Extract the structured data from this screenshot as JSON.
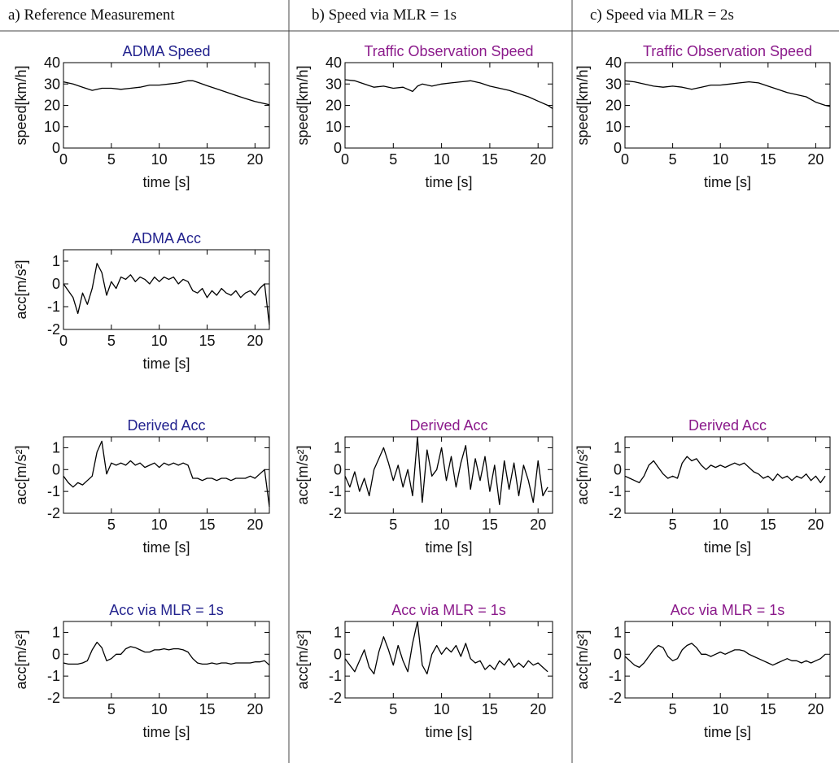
{
  "headers": [
    "a) Reference Measurement",
    "b) Speed via MLR = 1s",
    "c) Speed via MLR = 2s"
  ],
  "chart_data": [
    {
      "type": "line",
      "title": "ADMA  Speed",
      "title_color": "#23238e",
      "xlabel": "time [s]",
      "ylabel": "speed[km/h]",
      "color": "#000000",
      "xlim": [
        0,
        21.5
      ],
      "ylim": [
        0,
        40
      ],
      "xticks": [
        0,
        5,
        10,
        15,
        20
      ],
      "yticks": [
        0,
        10,
        20,
        30,
        40
      ],
      "x": [
        0,
        1,
        2,
        3,
        4,
        5,
        6,
        7,
        8,
        9,
        10,
        11,
        12,
        13,
        13.5,
        14,
        15,
        16,
        17,
        18,
        19,
        20,
        21,
        21.5
      ],
      "values": [
        31,
        30,
        28.5,
        27,
        28,
        28,
        27.5,
        28,
        28.5,
        29.5,
        29.5,
        30,
        30.5,
        31.5,
        31.5,
        30.8,
        29.2,
        27.7,
        26.2,
        24.7,
        23.2,
        21.8,
        20.8,
        20.3
      ]
    },
    {
      "type": "line",
      "title": "ADMA Acc",
      "title_color": "#23238e",
      "xlabel": "time [s]",
      "ylabel": "acc[m/s²]",
      "color": "#000000",
      "xlim": [
        0,
        21.5
      ],
      "ylim": [
        -2,
        1.5
      ],
      "xticks": [
        0,
        5,
        10,
        15,
        20
      ],
      "yticks": [
        -2,
        -1,
        0,
        1
      ],
      "x": [
        0,
        0.5,
        1,
        1.5,
        2,
        2.5,
        3,
        3.5,
        4,
        4.5,
        5,
        5.5,
        6,
        6.5,
        7,
        7.5,
        8,
        8.5,
        9,
        9.5,
        10,
        10.5,
        11,
        11.5,
        12,
        12.5,
        13,
        13.5,
        14,
        14.5,
        15,
        15.5,
        16,
        16.5,
        17,
        17.5,
        18,
        18.5,
        19,
        19.5,
        20,
        20.5,
        21,
        21.5
      ],
      "values": [
        0,
        -0.3,
        -0.6,
        -1.3,
        -0.4,
        -0.9,
        -0.2,
        0.9,
        0.5,
        -0.5,
        0.1,
        -0.2,
        0.3,
        0.2,
        0.4,
        0.1,
        0.3,
        0.2,
        0,
        0.3,
        0.1,
        0.3,
        0.2,
        0.3,
        0,
        0.2,
        0.1,
        -0.3,
        -0.4,
        -0.2,
        -0.6,
        -0.3,
        -0.5,
        -0.2,
        -0.4,
        -0.5,
        -0.3,
        -0.6,
        -0.4,
        -0.3,
        -0.5,
        -0.2,
        0,
        -1.8
      ]
    },
    {
      "type": "line",
      "title": "Derived Acc",
      "title_color": "#23238e",
      "xlabel": "time [s]",
      "ylabel": "acc[m/s²]",
      "color": "#000000",
      "xlim": [
        0,
        21.5
      ],
      "ylim": [
        -2,
        1.5
      ],
      "xticks": [
        5,
        10,
        15,
        20
      ],
      "yticks": [
        -2,
        -1,
        0,
        1
      ],
      "x": [
        0,
        0.5,
        1,
        1.5,
        2,
        2.5,
        3,
        3.5,
        4,
        4.5,
        5,
        5.5,
        6,
        6.5,
        7,
        7.5,
        8,
        8.5,
        9,
        9.5,
        10,
        10.5,
        11,
        11.5,
        12,
        12.5,
        13,
        13.5,
        14,
        14.5,
        15,
        15.5,
        16,
        16.5,
        17,
        17.5,
        18,
        18.5,
        19,
        19.5,
        20,
        20.5,
        21,
        21.5
      ],
      "values": [
        -0.3,
        -0.6,
        -0.8,
        -0.6,
        -0.7,
        -0.5,
        -0.3,
        0.8,
        1.3,
        -0.2,
        0.3,
        0.2,
        0.3,
        0.2,
        0.4,
        0.2,
        0.3,
        0.1,
        0.2,
        0.3,
        0.1,
        0.3,
        0.2,
        0.3,
        0.2,
        0.3,
        0.2,
        -0.4,
        -0.4,
        -0.5,
        -0.4,
        -0.4,
        -0.5,
        -0.4,
        -0.4,
        -0.5,
        -0.4,
        -0.4,
        -0.4,
        -0.3,
        -0.4,
        -0.2,
        0,
        -1.7
      ]
    },
    {
      "type": "line",
      "title": "Acc via MLR = 1s",
      "title_color": "#23238e",
      "xlabel": "time [s]",
      "ylabel": "acc[m/s²]",
      "color": "#000000",
      "xlim": [
        0,
        21.5
      ],
      "ylim": [
        -2,
        1.5
      ],
      "xticks": [
        5,
        10,
        15,
        20
      ],
      "yticks": [
        -2,
        -1,
        0,
        1
      ],
      "x": [
        0,
        0.5,
        1,
        1.5,
        2,
        2.5,
        3,
        3.5,
        4,
        4.5,
        5,
        5.5,
        6,
        6.5,
        7,
        7.5,
        8,
        8.5,
        9,
        9.5,
        10,
        10.5,
        11,
        11.5,
        12,
        12.5,
        13,
        13.5,
        14,
        14.5,
        15,
        15.5,
        16,
        16.5,
        17,
        17.5,
        18,
        18.5,
        19,
        19.5,
        20,
        20.5,
        21,
        21.5
      ],
      "values": [
        -0.4,
        -0.45,
        -0.45,
        -0.45,
        -0.4,
        -0.3,
        0.2,
        0.55,
        0.3,
        -0.3,
        -0.2,
        0,
        0,
        0.25,
        0.35,
        0.3,
        0.2,
        0.1,
        0.1,
        0.2,
        0.2,
        0.25,
        0.2,
        0.25,
        0.25,
        0.2,
        0.1,
        -0.2,
        -0.4,
        -0.45,
        -0.45,
        -0.4,
        -0.45,
        -0.4,
        -0.4,
        -0.45,
        -0.4,
        -0.4,
        -0.4,
        -0.4,
        -0.35,
        -0.35,
        -0.3,
        -0.5
      ]
    },
    {
      "type": "line",
      "title": "Traffic  Observation Speed",
      "title_color": "#8b1a8b",
      "xlabel": "time [s]",
      "ylabel": "speed[km/h]",
      "color": "#000000",
      "xlim": [
        0,
        21.5
      ],
      "ylim": [
        0,
        40
      ],
      "xticks": [
        0,
        5,
        10,
        15,
        20
      ],
      "yticks": [
        0,
        10,
        20,
        30,
        40
      ],
      "x": [
        0,
        1,
        2,
        3,
        4,
        5,
        6,
        7,
        7.5,
        8,
        9,
        10,
        11,
        12,
        13,
        14,
        15,
        16,
        17,
        18,
        19,
        20,
        21,
        21.5
      ],
      "values": [
        32,
        31.5,
        30,
        28.5,
        29,
        28,
        28.5,
        26.5,
        29,
        30,
        29,
        30,
        30.5,
        31,
        31.5,
        30.5,
        29,
        28,
        27,
        25.5,
        24,
        22,
        20,
        18.5
      ]
    },
    {
      "type": "line",
      "title": "Derived Acc",
      "title_color": "#8b1a8b",
      "xlabel": "time [s]",
      "ylabel": "acc[m/s²]",
      "color": "#000000",
      "xlim": [
        0,
        21.5
      ],
      "ylim": [
        -2,
        1.5
      ],
      "xticks": [
        5,
        10,
        15,
        20
      ],
      "yticks": [
        -2,
        -1,
        0,
        1
      ],
      "x": [
        0,
        0.5,
        1,
        1.5,
        2,
        2.5,
        3,
        3.5,
        4,
        4.5,
        5,
        5.5,
        6,
        6.5,
        7,
        7.5,
        8,
        8.5,
        9,
        9.5,
        10,
        10.5,
        11,
        11.5,
        12,
        12.5,
        13,
        13.5,
        14,
        14.5,
        15,
        15.5,
        16,
        16.5,
        17,
        17.5,
        18,
        18.5,
        19,
        19.5,
        20,
        20.5,
        21
      ],
      "values": [
        -0.3,
        -0.8,
        -0.1,
        -1,
        -0.4,
        -1.2,
        0,
        0.5,
        1,
        0.3,
        -0.5,
        0.2,
        -0.8,
        0,
        -1.2,
        1.5,
        -1.5,
        0.9,
        -0.3,
        0,
        1,
        -0.5,
        0.6,
        -0.8,
        0.3,
        1.1,
        -0.9,
        0.5,
        -0.5,
        0.6,
        -1,
        0.2,
        -1.6,
        0.4,
        -0.9,
        0.3,
        -1.2,
        0.2,
        -0.5,
        -1.5,
        0.4,
        -1.2,
        -0.8
      ]
    },
    {
      "type": "line",
      "title": "Acc via MLR = 1s",
      "title_color": "#8b1a8b",
      "xlabel": "time [s]",
      "ylabel": "acc[m/s²]",
      "color": "#000000",
      "xlim": [
        0,
        21.5
      ],
      "ylim": [
        -2,
        1.5
      ],
      "xticks": [
        5,
        10,
        15,
        20
      ],
      "yticks": [
        -2,
        -1,
        0,
        1
      ],
      "x": [
        0,
        0.5,
        1,
        1.5,
        2,
        2.5,
        3,
        3.5,
        4,
        4.5,
        5,
        5.5,
        6,
        6.5,
        7,
        7.5,
        8,
        8.5,
        9,
        9.5,
        10,
        10.5,
        11,
        11.5,
        12,
        12.5,
        13,
        13.5,
        14,
        14.5,
        15,
        15.5,
        16,
        16.5,
        17,
        17.5,
        18,
        18.5,
        19,
        19.5,
        20,
        20.5,
        21
      ],
      "values": [
        -0.2,
        -0.5,
        -0.8,
        -0.3,
        0.2,
        -0.6,
        -0.9,
        0.1,
        0.8,
        0.2,
        -0.5,
        0.4,
        -0.3,
        -0.8,
        0.5,
        1.5,
        -0.5,
        -0.9,
        0,
        0.4,
        0,
        0.3,
        0.1,
        0.4,
        -0.1,
        0.5,
        -0.2,
        -0.4,
        -0.3,
        -0.7,
        -0.5,
        -0.7,
        -0.3,
        -0.5,
        -0.2,
        -0.6,
        -0.4,
        -0.6,
        -0.3,
        -0.5,
        -0.4,
        -0.6,
        -0.8
      ]
    },
    {
      "type": "line",
      "title": "Traffic  Observation Speed",
      "title_color": "#8b1a8b",
      "xlabel": "time [s]",
      "ylabel": "speed[km/h]",
      "color": "#000000",
      "xlim": [
        0,
        21.5
      ],
      "ylim": [
        0,
        40
      ],
      "xticks": [
        0,
        5,
        10,
        15,
        20
      ],
      "yticks": [
        0,
        10,
        20,
        30,
        40
      ],
      "x": [
        0,
        1,
        2,
        3,
        4,
        5,
        6,
        7,
        8,
        9,
        10,
        11,
        12,
        13,
        14,
        15,
        16,
        17,
        18,
        19,
        20,
        21,
        21.5
      ],
      "values": [
        31.5,
        31,
        30,
        29,
        28.5,
        29,
        28.5,
        27.5,
        28.5,
        29.5,
        29.5,
        30,
        30.5,
        31,
        30.5,
        29,
        27.5,
        26,
        25,
        24,
        21.5,
        20,
        19.5
      ]
    },
    {
      "type": "line",
      "title": "Derived Acc",
      "title_color": "#8b1a8b",
      "xlabel": "time [s]",
      "ylabel": "acc[m/s²]",
      "color": "#000000",
      "xlim": [
        0,
        21.5
      ],
      "ylim": [
        -2,
        1.5
      ],
      "xticks": [
        5,
        10,
        15,
        20
      ],
      "yticks": [
        -2,
        -1,
        0,
        1
      ],
      "x": [
        0,
        0.5,
        1,
        1.5,
        2,
        2.5,
        3,
        3.5,
        4,
        4.5,
        5,
        5.5,
        6,
        6.5,
        7,
        7.5,
        8,
        8.5,
        9,
        9.5,
        10,
        10.5,
        11,
        11.5,
        12,
        12.5,
        13,
        13.5,
        14,
        14.5,
        15,
        15.5,
        16,
        16.5,
        17,
        17.5,
        18,
        18.5,
        19,
        19.5,
        20,
        20.5,
        21
      ],
      "values": [
        -0.3,
        -0.4,
        -0.5,
        -0.6,
        -0.3,
        0.2,
        0.4,
        0.1,
        -0.2,
        -0.4,
        -0.3,
        -0.4,
        0.3,
        0.6,
        0.4,
        0.5,
        0.2,
        0,
        0.2,
        0.1,
        0.2,
        0.1,
        0.2,
        0.3,
        0.2,
        0.3,
        0.1,
        -0.1,
        -0.2,
        -0.4,
        -0.3,
        -0.5,
        -0.2,
        -0.4,
        -0.3,
        -0.5,
        -0.3,
        -0.4,
        -0.2,
        -0.5,
        -0.3,
        -0.6,
        -0.3
      ]
    },
    {
      "type": "line",
      "title": "Acc via MLR = 1s",
      "title_color": "#8b1a8b",
      "xlabel": "time [s]",
      "ylabel": "acc[m/s²]",
      "color": "#000000",
      "xlim": [
        0,
        21.5
      ],
      "ylim": [
        -2,
        1.5
      ],
      "xticks": [
        5,
        10,
        15,
        20
      ],
      "yticks": [
        -2,
        -1,
        0,
        1
      ],
      "x": [
        0,
        0.5,
        1,
        1.5,
        2,
        2.5,
        3,
        3.5,
        4,
        4.5,
        5,
        5.5,
        6,
        6.5,
        7,
        7.5,
        8,
        8.5,
        9,
        9.5,
        10,
        10.5,
        11,
        11.5,
        12,
        12.5,
        13,
        13.5,
        14,
        14.5,
        15,
        15.5,
        16,
        16.5,
        17,
        17.5,
        18,
        18.5,
        19,
        19.5,
        20,
        20.5,
        21
      ],
      "values": [
        -0.1,
        -0.3,
        -0.5,
        -0.6,
        -0.4,
        -0.1,
        0.2,
        0.4,
        0.3,
        -0.1,
        -0.3,
        -0.2,
        0.2,
        0.4,
        0.5,
        0.3,
        0,
        0,
        -0.1,
        0,
        0.1,
        0,
        0.1,
        0.2,
        0.2,
        0.15,
        0,
        -0.1,
        -0.2,
        -0.3,
        -0.4,
        -0.5,
        -0.4,
        -0.3,
        -0.2,
        -0.3,
        -0.3,
        -0.4,
        -0.3,
        -0.4,
        -0.3,
        -0.2,
        0
      ]
    }
  ]
}
